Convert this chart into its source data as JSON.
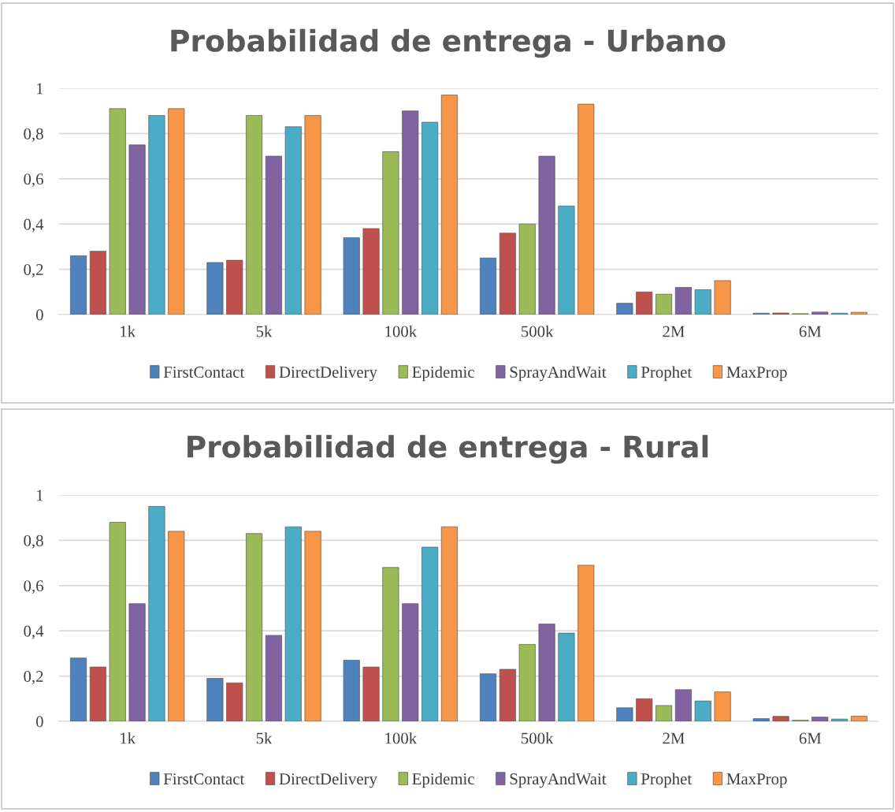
{
  "chart_data": [
    {
      "type": "bar",
      "title": "Probabilidad de entrega - Urbano",
      "categories": [
        "1k",
        "5k",
        "100k",
        "500k",
        "2M",
        "6M"
      ],
      "series": [
        {
          "name": "FirstContact",
          "color": "#4f81bd",
          "values": [
            0.26,
            0.23,
            0.34,
            0.25,
            0.05,
            0.006
          ]
        },
        {
          "name": "DirectDelivery",
          "color": "#c0504d",
          "values": [
            0.28,
            0.24,
            0.38,
            0.36,
            0.1,
            0.007
          ]
        },
        {
          "name": "Epidemic",
          "color": "#9bbb59",
          "values": [
            0.91,
            0.88,
            0.72,
            0.4,
            0.09,
            0.004
          ]
        },
        {
          "name": "SprayAndWait",
          "color": "#8064a2",
          "values": [
            0.75,
            0.7,
            0.9,
            0.7,
            0.12,
            0.011
          ]
        },
        {
          "name": "Prophet",
          "color": "#4bacc6",
          "values": [
            0.88,
            0.83,
            0.85,
            0.48,
            0.11,
            0.006
          ]
        },
        {
          "name": "MaxProp",
          "color": "#f79646",
          "values": [
            0.91,
            0.88,
            0.97,
            0.93,
            0.15,
            0.01
          ]
        }
      ],
      "ylim": [
        0,
        1
      ],
      "yticks": [
        0,
        {
          "value": 0.2,
          "label": "0,2"
        },
        {
          "value": 0.4,
          "label": "0,4"
        },
        {
          "value": 0.6,
          "label": "0,6"
        },
        {
          "value": 0.8,
          "label": "0,8"
        },
        1
      ],
      "grid": "y",
      "legend": "bottom"
    },
    {
      "type": "bar",
      "title": "Probabilidad de entrega - Rural",
      "categories": [
        "1k",
        "5k",
        "100k",
        "500k",
        "2M",
        "6M"
      ],
      "series": [
        {
          "name": "FirstContact",
          "color": "#4f81bd",
          "values": [
            0.28,
            0.19,
            0.27,
            0.21,
            0.06,
            0.012
          ]
        },
        {
          "name": "DirectDelivery",
          "color": "#c0504d",
          "values": [
            0.24,
            0.17,
            0.24,
            0.23,
            0.1,
            0.022
          ]
        },
        {
          "name": "Epidemic",
          "color": "#9bbb59",
          "values": [
            0.88,
            0.83,
            0.68,
            0.34,
            0.07,
            0.005
          ]
        },
        {
          "name": "SprayAndWait",
          "color": "#8064a2",
          "values": [
            0.52,
            0.38,
            0.52,
            0.43,
            0.14,
            0.019
          ]
        },
        {
          "name": "Prophet",
          "color": "#4bacc6",
          "values": [
            0.95,
            0.86,
            0.77,
            0.39,
            0.09,
            0.01
          ]
        },
        {
          "name": "MaxProp",
          "color": "#f79646",
          "values": [
            0.84,
            0.84,
            0.86,
            0.69,
            0.13,
            0.023
          ]
        }
      ],
      "ylim": [
        0,
        1
      ],
      "yticks": [
        0,
        {
          "value": 0.2,
          "label": "0,2"
        },
        {
          "value": 0.4,
          "label": "0,4"
        },
        {
          "value": 0.6,
          "label": "0,6"
        },
        {
          "value": 0.8,
          "label": "0,8"
        },
        1
      ],
      "grid": "y",
      "legend": "bottom"
    }
  ]
}
